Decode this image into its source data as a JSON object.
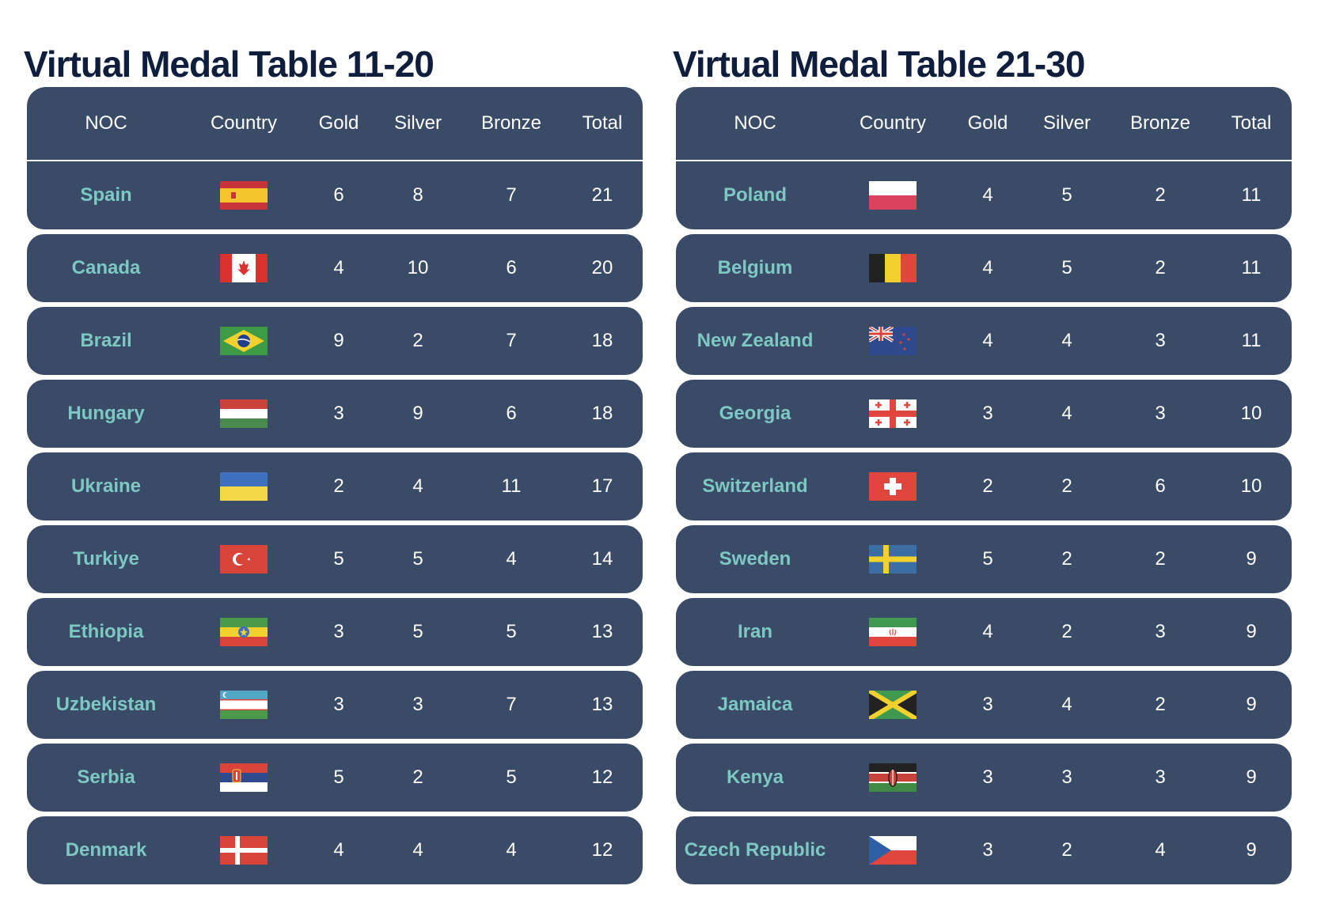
{
  "tables": [
    {
      "title": "Virtual Medal Table 11-20",
      "headers": {
        "noc": "NOC",
        "country": "Country",
        "gold": "Gold",
        "silver": "Silver",
        "bronze": "Bronze",
        "total": "Total"
      },
      "rows": [
        {
          "noc": "Spain",
          "flag": "spain-flag-icon",
          "gold": "6",
          "silver": "8",
          "bronze": "7",
          "total": "21"
        },
        {
          "noc": "Canada",
          "flag": "canada-flag-icon",
          "gold": "4",
          "silver": "10",
          "bronze": "6",
          "total": "20"
        },
        {
          "noc": "Brazil",
          "flag": "brazil-flag-icon",
          "gold": "9",
          "silver": "2",
          "bronze": "7",
          "total": "18"
        },
        {
          "noc": "Hungary",
          "flag": "hungary-flag-icon",
          "gold": "3",
          "silver": "9",
          "bronze": "6",
          "total": "18"
        },
        {
          "noc": "Ukraine",
          "flag": "ukraine-flag-icon",
          "gold": "2",
          "silver": "4",
          "bronze": "11",
          "total": "17"
        },
        {
          "noc": "Turkiye",
          "flag": "turkiye-flag-icon",
          "gold": "5",
          "silver": "5",
          "bronze": "4",
          "total": "14"
        },
        {
          "noc": "Ethiopia",
          "flag": "ethiopia-flag-icon",
          "gold": "3",
          "silver": "5",
          "bronze": "5",
          "total": "13"
        },
        {
          "noc": "Uzbekistan",
          "flag": "uzbekistan-flag-icon",
          "gold": "3",
          "silver": "3",
          "bronze": "7",
          "total": "13"
        },
        {
          "noc": "Serbia",
          "flag": "serbia-flag-icon",
          "gold": "5",
          "silver": "2",
          "bronze": "5",
          "total": "12"
        },
        {
          "noc": "Denmark",
          "flag": "denmark-flag-icon",
          "gold": "4",
          "silver": "4",
          "bronze": "4",
          "total": "12"
        }
      ]
    },
    {
      "title": "Virtual Medal Table 21-30",
      "headers": {
        "noc": "NOC",
        "country": "Country",
        "gold": "Gold",
        "silver": "Silver",
        "bronze": "Bronze",
        "total": "Total"
      },
      "rows": [
        {
          "noc": "Poland",
          "flag": "poland-flag-icon",
          "gold": "4",
          "silver": "5",
          "bronze": "2",
          "total": "11"
        },
        {
          "noc": "Belgium",
          "flag": "belgium-flag-icon",
          "gold": "4",
          "silver": "5",
          "bronze": "2",
          "total": "11"
        },
        {
          "noc": "New Zealand",
          "flag": "new-zealand-flag-icon",
          "gold": "4",
          "silver": "4",
          "bronze": "3",
          "total": "11"
        },
        {
          "noc": "Georgia",
          "flag": "georgia-flag-icon",
          "gold": "3",
          "silver": "4",
          "bronze": "3",
          "total": "10"
        },
        {
          "noc": "Switzerland",
          "flag": "switzerland-flag-icon",
          "gold": "2",
          "silver": "2",
          "bronze": "6",
          "total": "10"
        },
        {
          "noc": "Sweden",
          "flag": "sweden-flag-icon",
          "gold": "5",
          "silver": "2",
          "bronze": "2",
          "total": "9"
        },
        {
          "noc": "Iran",
          "flag": "iran-flag-icon",
          "gold": "4",
          "silver": "2",
          "bronze": "3",
          "total": "9"
        },
        {
          "noc": "Jamaica",
          "flag": "jamaica-flag-icon",
          "gold": "3",
          "silver": "4",
          "bronze": "2",
          "total": "9"
        },
        {
          "noc": "Kenya",
          "flag": "kenya-flag-icon",
          "gold": "3",
          "silver": "3",
          "bronze": "3",
          "total": "9"
        },
        {
          "noc": "Czech Republic",
          "flag": "czech-republic-flag-icon",
          "gold": "3",
          "silver": "2",
          "bronze": "4",
          "total": "9"
        }
      ]
    }
  ],
  "colors": {
    "title": "#0f1e3d",
    "row_bg": "#394b66",
    "noc_text": "#7ec8c4"
  }
}
